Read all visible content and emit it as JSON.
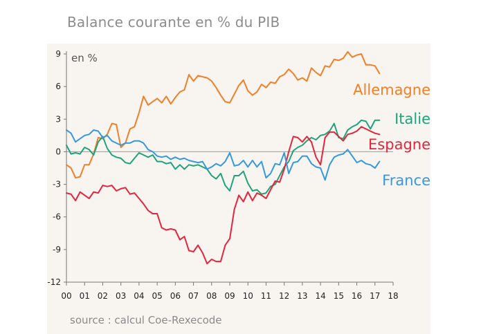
{
  "chart_data": {
    "type": "line",
    "title": "Balance courante en % du PIB",
    "ylabel": "en %",
    "xlabel": "",
    "source": "source : calcul Coe-Rexecode",
    "ylim": [
      -12,
      9
    ],
    "yticks": [
      9,
      6,
      3,
      0,
      -3,
      -6,
      -9,
      -12
    ],
    "ytick_labels": [
      "9",
      "6",
      "3",
      "0",
      "-3",
      "-6",
      "-9",
      "-12"
    ],
    "xlim": [
      2000,
      2018
    ],
    "xticks": [
      2000,
      2001,
      2002,
      2003,
      2004,
      2005,
      2006,
      2007,
      2008,
      2009,
      2010,
      2011,
      2012,
      2013,
      2014,
      2015,
      2016,
      2017,
      2018
    ],
    "xtick_labels": [
      "00",
      "01",
      "02",
      "03",
      "04",
      "05",
      "06",
      "07",
      "08",
      "09",
      "10",
      "11",
      "12",
      "13",
      "14",
      "15",
      "16",
      "17",
      "18"
    ],
    "series": [
      {
        "name": "Allemagne",
        "color": "#f07f2a",
        "x": [
          2000.0,
          2000.25,
          2000.5,
          2000.75,
          2001.0,
          2001.25,
          2001.5,
          2001.75,
          2002.0,
          2002.25,
          2002.5,
          2002.75,
          2003.0,
          2003.25,
          2003.5,
          2003.75,
          2004.0,
          2004.25,
          2004.5,
          2004.75,
          2005.0,
          2005.25,
          2005.5,
          2005.75,
          2006.0,
          2006.25,
          2006.5,
          2006.75,
          2007.0,
          2007.25,
          2007.5,
          2007.75,
          2008.0,
          2008.25,
          2008.5,
          2008.75,
          2009.0,
          2009.25,
          2009.5,
          2009.75,
          2010.0,
          2010.25,
          2010.5,
          2010.75,
          2011.0,
          2011.25,
          2011.5,
          2011.75,
          2012.0,
          2012.25,
          2012.5,
          2012.75,
          2013.0,
          2013.25,
          2013.5,
          2013.75,
          2014.0,
          2014.25,
          2014.5,
          2014.75,
          2015.0,
          2015.25,
          2015.5,
          2015.75,
          2016.0,
          2016.25,
          2016.5,
          2016.75,
          2017.0,
          2017.25
        ],
        "values": [
          -1.2,
          -1.5,
          -2.4,
          -2.3,
          -1.2,
          -1.2,
          -0.2,
          1.3,
          1.2,
          1.6,
          2.6,
          2.5,
          0.4,
          0.8,
          2.1,
          2.3,
          3.6,
          5.1,
          4.3,
          4.6,
          4.9,
          4.5,
          5.1,
          4.4,
          5.0,
          5.5,
          5.7,
          7.1,
          6.5,
          7.0,
          6.9,
          6.8,
          6.5,
          5.9,
          5.2,
          4.6,
          4.5,
          5.3,
          6.1,
          6.6,
          5.6,
          5.2,
          5.5,
          6.2,
          5.9,
          6.4,
          6.3,
          6.9,
          7.1,
          7.6,
          7.2,
          6.6,
          6.8,
          6.5,
          7.7,
          7.3,
          7.0,
          7.9,
          7.8,
          8.5,
          8.4,
          8.6,
          9.2,
          8.7,
          8.9,
          9.0,
          8.0,
          8.0,
          7.9,
          7.2
        ]
      },
      {
        "name": "Italie",
        "color": "#1fa37c",
        "x": [
          2000.0,
          2000.25,
          2000.5,
          2000.75,
          2001.0,
          2001.25,
          2001.5,
          2001.75,
          2002.0,
          2002.25,
          2002.5,
          2002.75,
          2003.0,
          2003.25,
          2003.5,
          2003.75,
          2004.0,
          2004.25,
          2004.5,
          2004.75,
          2005.0,
          2005.25,
          2005.5,
          2005.75,
          2006.0,
          2006.25,
          2006.5,
          2006.75,
          2007.0,
          2007.25,
          2007.5,
          2007.75,
          2008.0,
          2008.25,
          2008.5,
          2008.75,
          2009.0,
          2009.25,
          2009.5,
          2009.75,
          2010.0,
          2010.25,
          2010.5,
          2010.75,
          2011.0,
          2011.25,
          2011.5,
          2011.75,
          2012.0,
          2012.25,
          2012.5,
          2012.75,
          2013.0,
          2013.25,
          2013.5,
          2013.75,
          2014.0,
          2014.25,
          2014.5,
          2014.75,
          2015.0,
          2015.25,
          2015.5,
          2015.75,
          2016.0,
          2016.25,
          2016.5,
          2016.75,
          2017.0,
          2017.25
        ],
        "values": [
          0.6,
          -0.2,
          -0.1,
          -0.2,
          0.4,
          0.2,
          -0.3,
          0.9,
          1.4,
          0.3,
          -0.3,
          -0.5,
          -0.6,
          -1.0,
          -1.1,
          -0.6,
          -0.1,
          -0.3,
          -0.5,
          -0.3,
          -0.9,
          -0.9,
          -1.1,
          -1.0,
          -1.6,
          -1.2,
          -1.6,
          -1.2,
          -1.3,
          -1.2,
          -1.4,
          -1.6,
          -2.2,
          -2.5,
          -2.0,
          -3.1,
          -3.6,
          -2.2,
          -2.2,
          -1.8,
          -2.9,
          -3.6,
          -3.5,
          -3.9,
          -3.8,
          -3.2,
          -3.0,
          -2.2,
          -1.4,
          -0.9,
          0.1,
          0.4,
          0.6,
          1.0,
          1.3,
          1.1,
          1.5,
          1.6,
          1.9,
          2.6,
          1.3,
          1.2,
          2.0,
          2.3,
          2.5,
          2.9,
          2.8,
          2.1,
          2.9,
          2.9
        ]
      },
      {
        "name": "Espagne",
        "color": "#e5243b",
        "x": [
          2000.0,
          2000.25,
          2000.5,
          2000.75,
          2001.0,
          2001.25,
          2001.5,
          2001.75,
          2002.0,
          2002.25,
          2002.5,
          2002.75,
          2003.0,
          2003.25,
          2003.5,
          2003.75,
          2004.0,
          2004.25,
          2004.5,
          2004.75,
          2005.0,
          2005.25,
          2005.5,
          2005.75,
          2006.0,
          2006.25,
          2006.5,
          2006.75,
          2007.0,
          2007.25,
          2007.5,
          2007.75,
          2008.0,
          2008.25,
          2008.5,
          2008.75,
          2009.0,
          2009.25,
          2009.5,
          2009.75,
          2010.0,
          2010.25,
          2010.5,
          2010.75,
          2011.0,
          2011.25,
          2011.5,
          2011.75,
          2012.0,
          2012.25,
          2012.5,
          2012.75,
          2013.0,
          2013.25,
          2013.5,
          2013.75,
          2014.0,
          2014.25,
          2014.5,
          2014.75,
          2015.0,
          2015.25,
          2015.5,
          2015.75,
          2016.0,
          2016.25,
          2016.5,
          2016.75,
          2017.0,
          2017.25
        ],
        "values": [
          -3.8,
          -3.9,
          -4.5,
          -3.7,
          -4.0,
          -4.3,
          -3.7,
          -3.8,
          -3.1,
          -3.2,
          -3.1,
          -3.6,
          -3.4,
          -3.3,
          -3.9,
          -3.8,
          -4.3,
          -4.8,
          -5.4,
          -5.7,
          -5.7,
          -7.0,
          -7.2,
          -7.1,
          -7.2,
          -8.1,
          -7.8,
          -9.1,
          -9.2,
          -8.6,
          -9.3,
          -10.3,
          -9.9,
          -10.1,
          -10.1,
          -8.6,
          -8.0,
          -5.3,
          -4.0,
          -4.6,
          -3.7,
          -4.5,
          -3.8,
          -4.0,
          -4.3,
          -3.5,
          -2.7,
          -2.8,
          -1.6,
          0.0,
          1.4,
          1.3,
          0.9,
          1.4,
          0.9,
          -0.5,
          -1.2,
          1.3,
          1.8,
          1.8,
          1.4,
          1.0,
          1.6,
          1.7,
          1.9,
          2.3,
          2.1,
          1.9,
          1.7,
          1.6
        ]
      },
      {
        "name": "France",
        "color": "#3399e0",
        "x": [
          2000.0,
          2000.25,
          2000.5,
          2000.75,
          2001.0,
          2001.25,
          2001.5,
          2001.75,
          2002.0,
          2002.25,
          2002.5,
          2002.75,
          2003.0,
          2003.25,
          2003.5,
          2003.75,
          2004.0,
          2004.25,
          2004.5,
          2004.75,
          2005.0,
          2005.25,
          2005.5,
          2005.75,
          2006.0,
          2006.25,
          2006.5,
          2006.75,
          2007.0,
          2007.25,
          2007.5,
          2007.75,
          2008.0,
          2008.25,
          2008.5,
          2008.75,
          2009.0,
          2009.25,
          2009.5,
          2009.75,
          2010.0,
          2010.25,
          2010.5,
          2010.75,
          2011.0,
          2011.25,
          2011.5,
          2011.75,
          2012.0,
          2012.25,
          2012.5,
          2012.75,
          2013.0,
          2013.25,
          2013.5,
          2013.75,
          2014.0,
          2014.25,
          2014.5,
          2014.75,
          2015.0,
          2015.25,
          2015.5,
          2015.75,
          2016.0,
          2016.25,
          2016.5,
          2016.75,
          2017.0,
          2017.25
        ],
        "values": [
          2.0,
          1.7,
          0.9,
          1.2,
          1.5,
          1.6,
          2.0,
          1.9,
          1.3,
          1.5,
          1.0,
          0.8,
          0.6,
          0.8,
          0.8,
          1.0,
          1.0,
          0.8,
          0.2,
          0.0,
          -0.4,
          -0.5,
          -0.4,
          -0.7,
          -0.5,
          -0.7,
          -0.6,
          -0.8,
          -0.9,
          -1.0,
          -0.9,
          -1.6,
          -1.4,
          -1.1,
          -1.3,
          -0.9,
          -0.1,
          -1.3,
          -1.2,
          -0.8,
          -1.4,
          -0.8,
          -1.4,
          -0.9,
          -2.4,
          -2.0,
          -1.1,
          -1.2,
          -0.1,
          -2.0,
          -1.0,
          -0.9,
          -0.4,
          -0.4,
          -1.1,
          -1.4,
          -1.5,
          -2.6,
          -1.2,
          -0.5,
          -0.3,
          -0.2,
          0.2,
          -0.4,
          -1.0,
          -0.8,
          -1.1,
          -1.2,
          -1.5,
          -0.9
        ]
      }
    ]
  }
}
